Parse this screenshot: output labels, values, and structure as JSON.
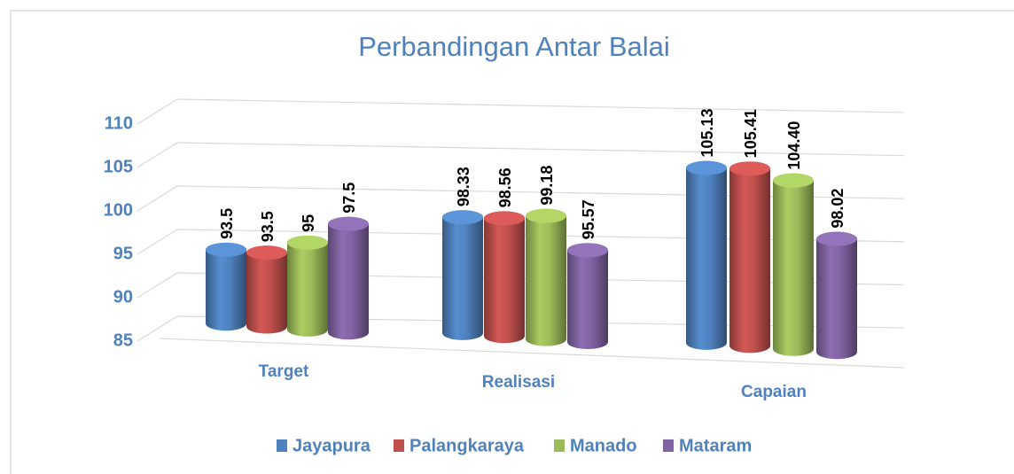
{
  "chart_data": {
    "type": "bar3d",
    "title": "Perbandingan Antar Balai",
    "categories": [
      "Target",
      "Realisasi",
      "Capaian"
    ],
    "series": [
      {
        "name": "Jayapura",
        "color": "#4f81bd",
        "values": [
          93.5,
          98.33,
          105.13
        ]
      },
      {
        "name": "Palangkaraya",
        "color": "#c0504d",
        "values": [
          93.5,
          98.56,
          105.41
        ]
      },
      {
        "name": "Manado",
        "color": "#9bbb59",
        "values": [
          95,
          99.18,
          104.4
        ],
        "value_labels": [
          "95",
          "99.18",
          "104.40"
        ]
      },
      {
        "name": "Mataram",
        "color": "#8064a2",
        "values": [
          97.5,
          95.57,
          98.02
        ]
      }
    ],
    "ylim": [
      85,
      110
    ],
    "yticks": [
      85,
      90,
      95,
      100,
      105,
      110
    ],
    "grid": true,
    "legend": "bottom"
  }
}
